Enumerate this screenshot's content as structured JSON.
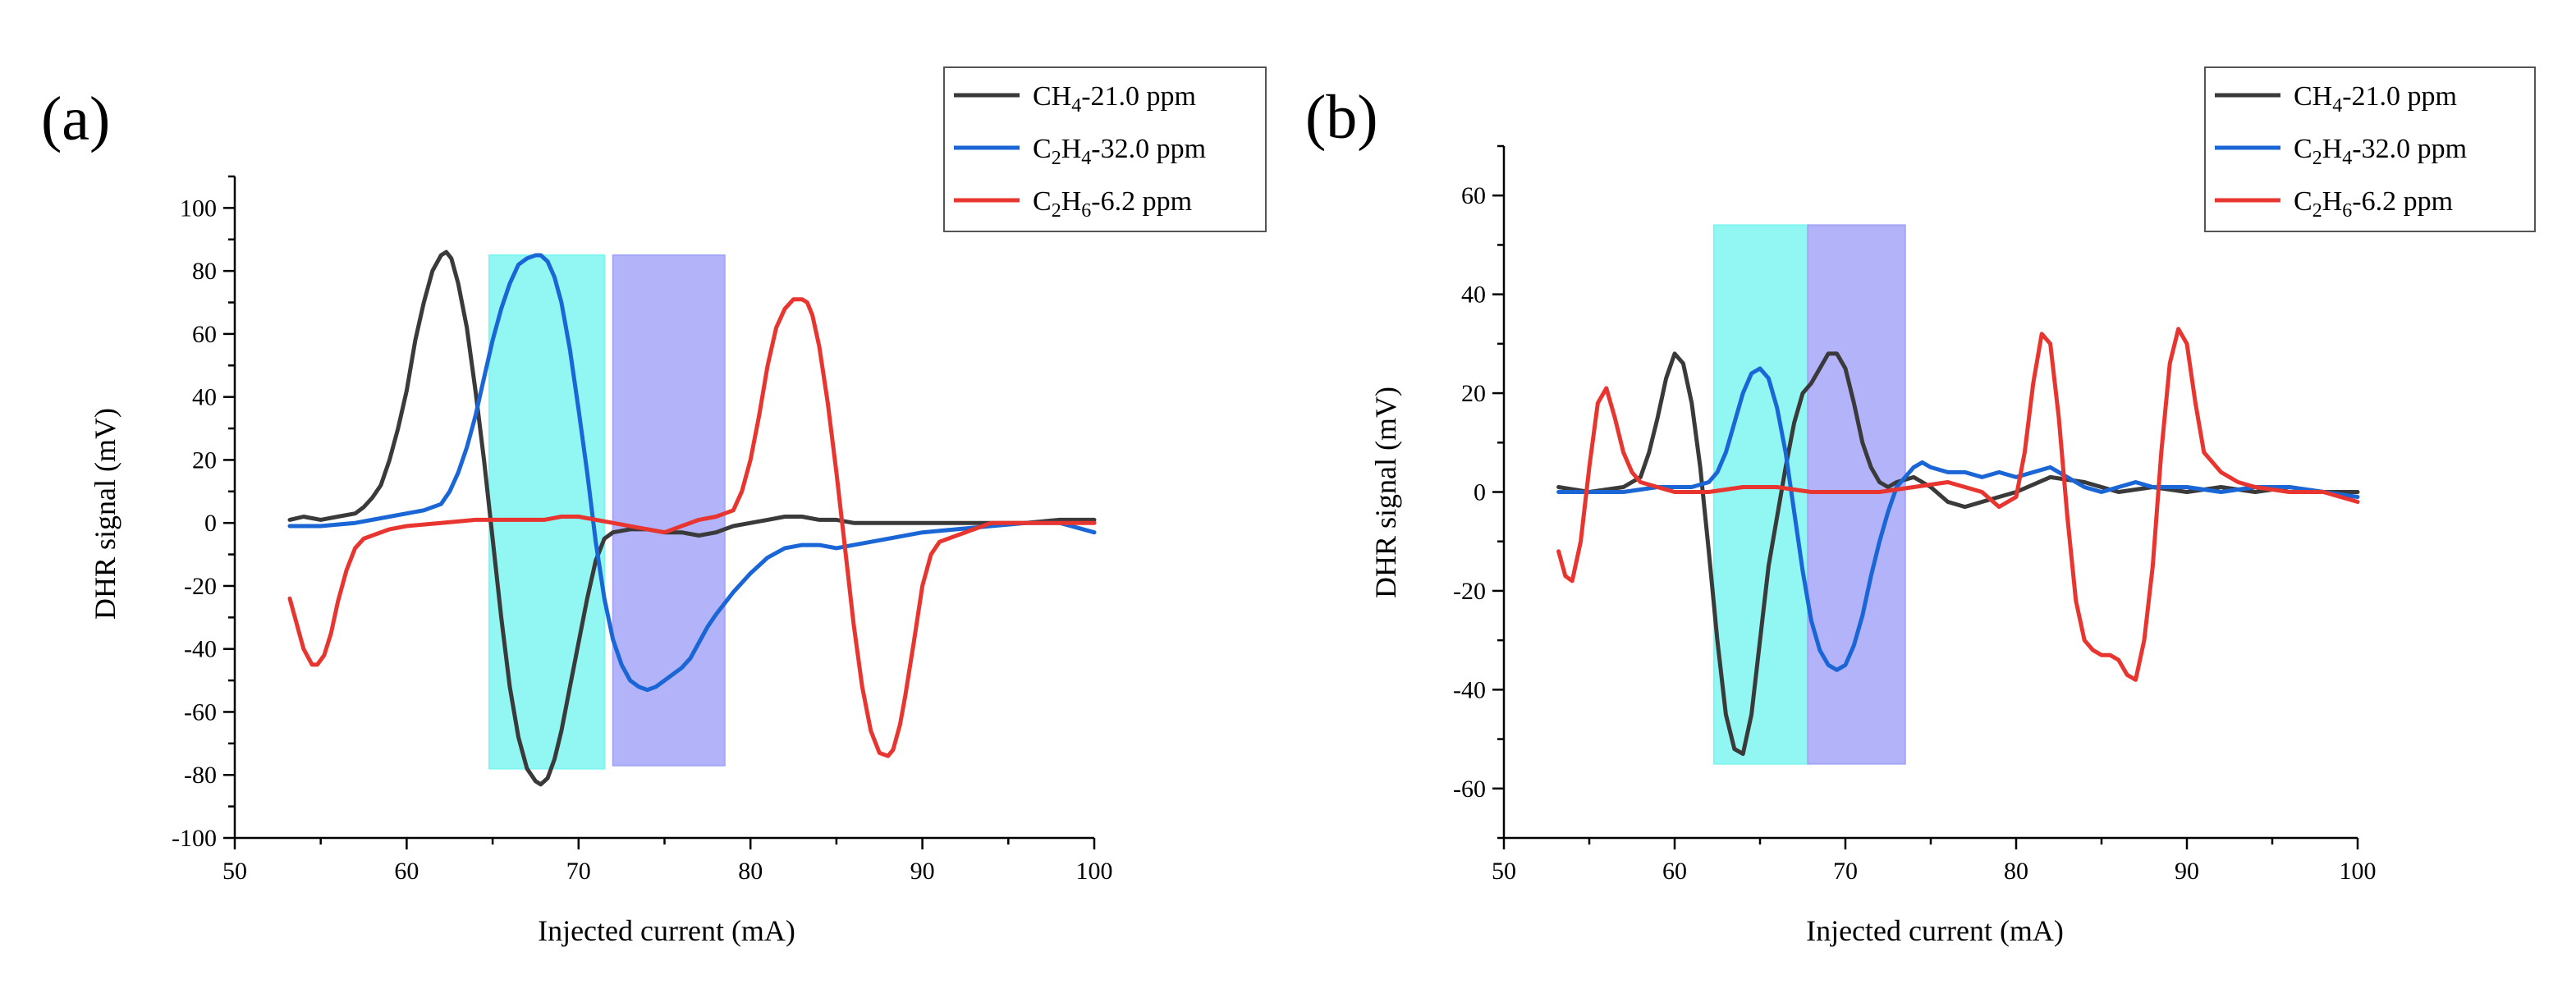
{
  "chart_data": [
    {
      "panel": "(a)",
      "type": "line",
      "xlabel": "Injected current (mA)",
      "ylabel": "DHR signal (mV)",
      "xlim": [
        50,
        100
      ],
      "ylim": [
        -100,
        110
      ],
      "xticks": [
        50,
        60,
        70,
        80,
        90,
        100
      ],
      "yticks": [
        -100,
        -80,
        -60,
        -40,
        -20,
        0,
        20,
        40,
        60,
        80,
        100
      ],
      "grid": false,
      "legend_position": "top-right",
      "highlight_bands": [
        {
          "x": [
            64.8,
            71.5
          ],
          "y": [
            -78,
            85
          ],
          "color": "#7ff5f0"
        },
        {
          "x": [
            72.0,
            78.5
          ],
          "y": [
            -77,
            85
          ],
          "color": "#a6a6f8"
        }
      ],
      "series": [
        {
          "name": "CH4-21.0 ppm",
          "label_main": "CH",
          "label_sub": "4",
          "label_rest": "-21.0 ppm",
          "color": "#3a3a3a",
          "x": [
            53.2,
            54,
            55,
            56,
            57,
            57.5,
            58,
            58.5,
            59,
            59.5,
            60,
            60.5,
            61,
            61.5,
            62,
            62.3,
            62.6,
            63,
            63.5,
            64,
            64.5,
            65,
            65.5,
            66,
            66.5,
            67,
            67.5,
            67.8,
            68.2,
            68.6,
            69,
            69.5,
            70,
            70.5,
            71,
            71.5,
            72,
            73,
            74,
            75,
            76,
            77,
            78,
            79,
            80,
            81,
            82,
            83,
            84,
            85,
            86,
            88,
            90,
            92,
            94,
            96,
            98,
            100
          ],
          "y": [
            1,
            2,
            1,
            2,
            3,
            5,
            8,
            12,
            20,
            30,
            42,
            58,
            70,
            80,
            85,
            86,
            84,
            76,
            62,
            42,
            20,
            -5,
            -30,
            -52,
            -68,
            -78,
            -82,
            -83,
            -81,
            -75,
            -66,
            -52,
            -38,
            -24,
            -12,
            -5,
            -3,
            -2,
            -2,
            -3,
            -3,
            -4,
            -3,
            -1,
            0,
            1,
            2,
            2,
            1,
            1,
            0,
            0,
            0,
            0,
            0,
            0,
            1,
            1
          ]
        },
        {
          "name": "C2H4-32.0 ppm",
          "label_main": "C",
          "label_sub": "2",
          "label_rest": "H",
          "label_sub2": "4",
          "label_rest2": "-32.0 ppm",
          "color": "#1a66d6",
          "x": [
            53.2,
            55,
            57,
            59,
            61,
            62,
            62.5,
            63,
            63.5,
            64,
            64.5,
            65,
            65.5,
            66,
            66.5,
            67,
            67.5,
            67.8,
            68.2,
            68.6,
            69,
            69.5,
            70,
            70.5,
            71,
            71.5,
            72,
            72.5,
            73,
            73.5,
            74,
            74.5,
            75,
            75.5,
            76,
            76.5,
            77,
            77.5,
            78,
            79,
            80,
            81,
            82,
            83,
            84,
            85,
            86,
            88,
            90,
            92,
            94,
            96,
            98,
            100
          ],
          "y": [
            -1,
            -1,
            0,
            2,
            4,
            6,
            10,
            16,
            24,
            34,
            46,
            58,
            68,
            76,
            82,
            84,
            85,
            85,
            83,
            78,
            70,
            55,
            36,
            16,
            -6,
            -24,
            -37,
            -45,
            -50,
            -52,
            -53,
            -52,
            -50,
            -48,
            -46,
            -43,
            -38,
            -33,
            -29,
            -22,
            -16,
            -11,
            -8,
            -7,
            -7,
            -8,
            -7,
            -5,
            -3,
            -2,
            -1,
            0,
            0,
            -3
          ]
        },
        {
          "name": "C2H6-6.2 ppm",
          "label_main": "C",
          "label_sub": "2",
          "label_rest": "H",
          "label_sub2": "6",
          "label_rest2": "-6.2 ppm",
          "color": "#e8352f",
          "x": [
            53.2,
            53.6,
            54,
            54.5,
            54.8,
            55.2,
            55.6,
            56,
            56.5,
            57,
            57.5,
            58,
            59,
            60,
            62,
            64,
            66,
            68,
            69,
            70,
            72,
            74,
            75,
            76,
            77,
            78,
            79,
            79.5,
            80,
            80.5,
            81,
            81.5,
            82,
            82.5,
            83,
            83.3,
            83.6,
            84,
            84.5,
            85,
            85.5,
            86,
            86.5,
            87,
            87.5,
            88,
            88.3,
            88.7,
            89,
            89.5,
            90,
            90.5,
            91,
            92,
            93,
            94,
            96,
            98,
            100
          ],
          "y": [
            -24,
            -32,
            -40,
            -45,
            -45,
            -42,
            -35,
            -25,
            -15,
            -8,
            -5,
            -4,
            -2,
            -1,
            0,
            1,
            1,
            1,
            2,
            2,
            0,
            -2,
            -3,
            -1,
            1,
            2,
            4,
            10,
            20,
            34,
            50,
            62,
            68,
            71,
            71,
            70,
            66,
            56,
            38,
            16,
            -8,
            -32,
            -52,
            -66,
            -73,
            -74,
            -72,
            -64,
            -55,
            -38,
            -20,
            -10,
            -6,
            -4,
            -2,
            0,
            0,
            0,
            0
          ]
        }
      ]
    },
    {
      "panel": "(b)",
      "type": "line",
      "xlabel": "Injected current (mA)",
      "ylabel": "DHR signal (mV)",
      "xlim": [
        50,
        100
      ],
      "ylim": [
        -70,
        70
      ],
      "xticks": [
        50,
        60,
        70,
        80,
        90,
        100
      ],
      "yticks": [
        -60,
        -40,
        -20,
        0,
        20,
        40,
        60
      ],
      "grid": false,
      "legend_position": "top-right",
      "highlight_bands": [
        {
          "x": [
            62.3,
            67.8
          ],
          "y": [
            -55,
            54
          ],
          "color": "#7ff5f0"
        },
        {
          "x": [
            67.8,
            73.5
          ],
          "y": [
            -55,
            54
          ],
          "color": "#a6a6f8"
        }
      ],
      "series": [
        {
          "name": "CH4-21.0 ppm",
          "label_main": "CH",
          "label_sub": "4",
          "label_rest": "-21.0 ppm",
          "color": "#3a3a3a",
          "x": [
            53.2,
            55,
            57,
            58,
            58.5,
            59,
            59.5,
            60,
            60.5,
            61,
            61.5,
            62,
            62.5,
            63,
            63.5,
            64,
            64.5,
            65,
            65.5,
            66,
            66.5,
            67,
            67.5,
            68,
            68.5,
            69,
            69.5,
            70,
            70.5,
            71,
            71.5,
            72,
            72.5,
            73,
            74,
            75,
            76,
            77,
            78,
            80,
            82,
            84,
            86,
            88,
            90,
            92,
            94,
            96,
            98,
            100
          ],
          "y": [
            1,
            0,
            1,
            3,
            8,
            15,
            23,
            28,
            26,
            18,
            5,
            -12,
            -30,
            -45,
            -52,
            -53,
            -45,
            -30,
            -15,
            -5,
            5,
            14,
            20,
            22,
            25,
            28,
            28,
            25,
            18,
            10,
            5,
            2,
            1,
            2,
            3,
            1,
            -2,
            -3,
            -2,
            0,
            3,
            2,
            0,
            1,
            0,
            1,
            0,
            1,
            0,
            0
          ]
        },
        {
          "name": "C2H4-32.0 ppm",
          "label_main": "C",
          "label_sub": "2",
          "label_rest": "H",
          "label_sub2": "4",
          "label_rest2": "-32.0 ppm",
          "color": "#1a66d6",
          "x": [
            53.2,
            55,
            57,
            59,
            61,
            62,
            62.5,
            63,
            63.5,
            64,
            64.5,
            65,
            65.5,
            66,
            66.5,
            67,
            67.5,
            68,
            68.5,
            69,
            69.5,
            70,
            70.5,
            71,
            71.5,
            72,
            72.5,
            73,
            73.5,
            74,
            74.5,
            75,
            76,
            77,
            78,
            79,
            80,
            81,
            82,
            83,
            84,
            85,
            86,
            87,
            88,
            90,
            92,
            94,
            96,
            98,
            100
          ],
          "y": [
            0,
            0,
            0,
            1,
            1,
            2,
            4,
            8,
            14,
            20,
            24,
            25,
            23,
            17,
            8,
            -4,
            -16,
            -26,
            -32,
            -35,
            -36,
            -35,
            -31,
            -25,
            -17,
            -10,
            -4,
            1,
            3,
            5,
            6,
            5,
            4,
            4,
            3,
            4,
            3,
            4,
            5,
            3,
            1,
            0,
            1,
            2,
            1,
            1,
            0,
            1,
            1,
            0,
            -1
          ]
        },
        {
          "name": "C2H6-6.2 ppm",
          "label_main": "C",
          "label_sub": "2",
          "label_rest": "H",
          "label_sub2": "6",
          "label_rest2": "-6.2 ppm",
          "color": "#e8352f",
          "x": [
            53.2,
            53.6,
            54,
            54.5,
            55,
            55.5,
            56,
            56.5,
            57,
            57.5,
            58,
            59,
            60,
            62,
            64,
            66,
            68,
            70,
            72,
            74,
            76,
            78,
            79,
            80,
            80.5,
            81,
            81.5,
            82,
            82.5,
            83,
            83.5,
            84,
            84.5,
            85,
            85.5,
            86,
            86.5,
            87,
            87.5,
            88,
            88.5,
            89,
            89.5,
            90,
            90.5,
            91,
            92,
            93,
            94,
            96,
            98,
            100
          ],
          "y": [
            -12,
            -17,
            -18,
            -10,
            5,
            18,
            21,
            15,
            8,
            4,
            2,
            1,
            0,
            0,
            1,
            1,
            0,
            0,
            0,
            1,
            2,
            0,
            -3,
            -1,
            8,
            22,
            32,
            30,
            15,
            -5,
            -22,
            -30,
            -32,
            -33,
            -33,
            -34,
            -37,
            -38,
            -30,
            -15,
            8,
            26,
            33,
            30,
            18,
            8,
            4,
            2,
            1,
            0,
            0,
            -2
          ]
        }
      ]
    }
  ]
}
